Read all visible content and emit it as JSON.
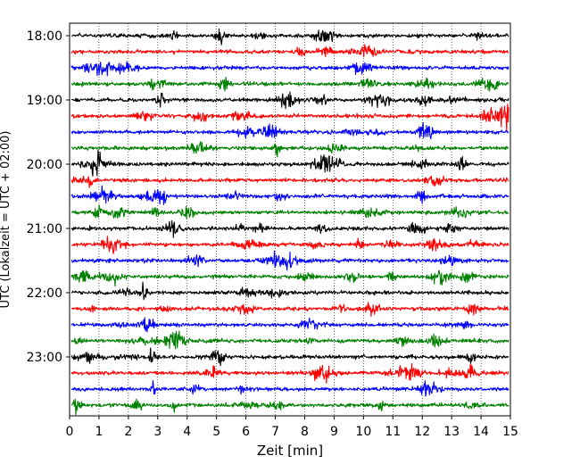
{
  "chart_data": {
    "type": "line",
    "subtype": "helicorder",
    "title": "",
    "xlabel": "Zeit  [min]",
    "ylabel": "UTC (Lokalzeit = UTC + 02:00)",
    "xlim": [
      0,
      15
    ],
    "x_ticks": [
      "0",
      "1",
      "2",
      "3",
      "4",
      "5",
      "6",
      "7",
      "8",
      "9",
      "10",
      "11",
      "12",
      "13",
      "14",
      "15"
    ],
    "row_interval_min": 15,
    "y_hour_ticks": [
      "18:00",
      "19:00",
      "20:00",
      "21:00",
      "22:00",
      "23:00"
    ],
    "rows": [
      "18:00",
      "18:15",
      "18:30",
      "18:45",
      "19:00",
      "19:15",
      "19:30",
      "19:45",
      "20:00",
      "20:15",
      "20:30",
      "20:45",
      "21:00",
      "21:15",
      "21:30",
      "21:45",
      "22:00",
      "22:15",
      "22:30",
      "22:45",
      "23:00",
      "23:15",
      "23:30",
      "23:45"
    ],
    "trace_colors": [
      "#000000",
      "#ff0000",
      "#0000ff",
      "#008000"
    ],
    "grid": {
      "vertical": true,
      "style": "dotted"
    }
  }
}
